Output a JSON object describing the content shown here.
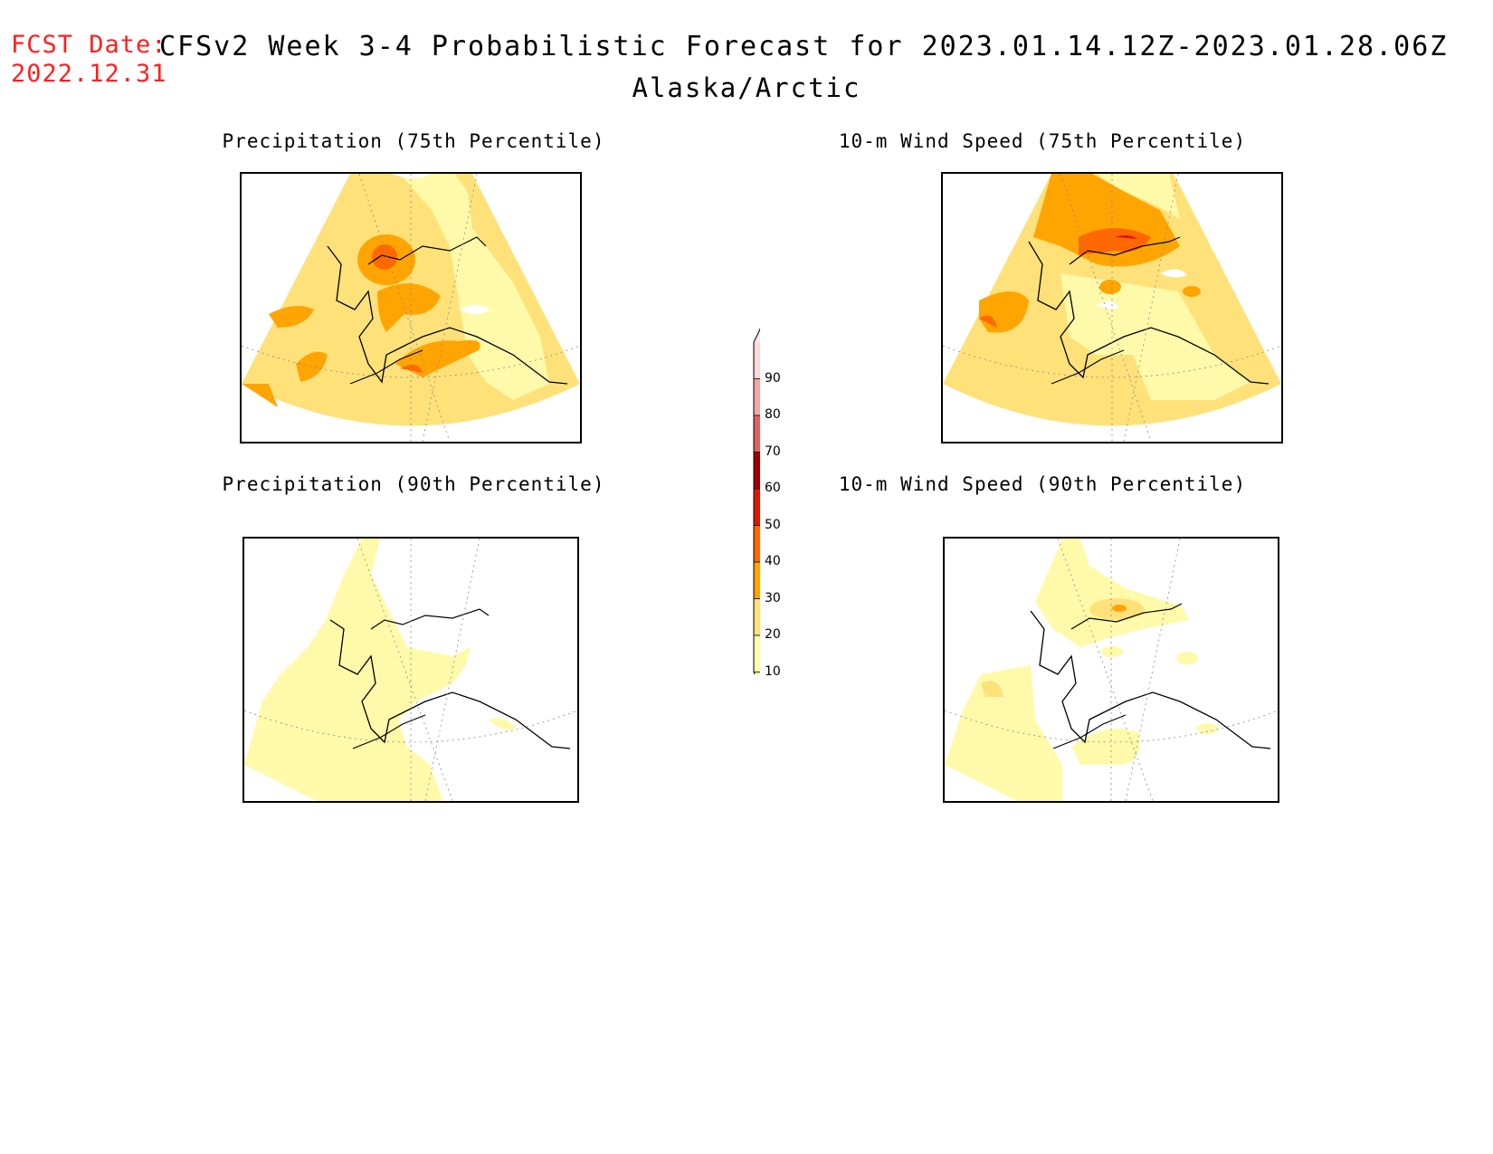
{
  "header": {
    "fcst_label": "FCST Date:",
    "fcst_date": "2022.12.31",
    "title": "CFSv2 Week 3-4 Probabilistic Forecast for 2023.01.14.12Z-2023.01.28.06Z",
    "region": "Alaska/Arctic"
  },
  "panels": [
    {
      "id": "precip75",
      "title": "Precipitation (75th Percentile)"
    },
    {
      "id": "wind75",
      "title": "10-m Wind Speed (75th Percentile)"
    },
    {
      "id": "precip90",
      "title": "Precipitation (90th Percentile)"
    },
    {
      "id": "wind90",
      "title": "10-m Wind Speed (90th Percentile)"
    }
  ],
  "colorbar": {
    "ticks": [
      "90",
      "80",
      "70",
      "60",
      "50",
      "40",
      "30",
      "20",
      "10"
    ],
    "colors": [
      "#fbd9d9",
      "#f2a6a6",
      "#dd6464",
      "#9f0000",
      "#dc1a00",
      "#ff6800",
      "#ffa400",
      "#ffe17a",
      "#fffaaa"
    ]
  }
}
